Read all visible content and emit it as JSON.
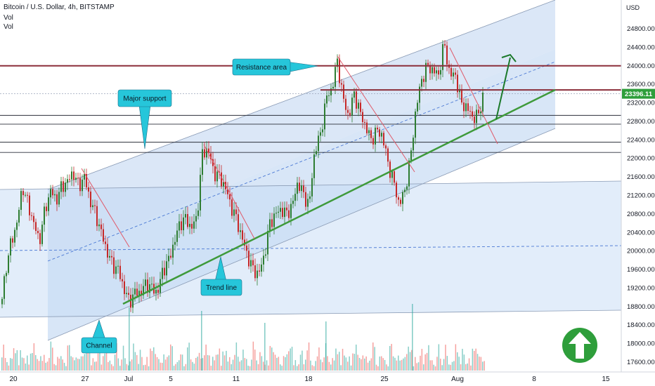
{
  "header": {
    "symbol_line": "Bitcoin / U.S. Dollar, 4h, BITSTAMP",
    "indicator_1": "Vol",
    "indicator_2": "Vol"
  },
  "axis": {
    "currency": "USD",
    "current_price": "23396.11"
  },
  "annotations": {
    "resistance": "Resistance area",
    "support": "Major support",
    "trend": "Trend line",
    "channel": "Channel"
  },
  "colors": {
    "up": "#26a69a",
    "down": "#ef5350",
    "candle_up": "#2e7d32",
    "candle_down": "#c62828",
    "channel_fill": "#bcd4f2",
    "trendline": "#3e9a3a",
    "resistance": "#8b2e3a",
    "callout": "#26c6da",
    "price_badge": "#2e9e3b",
    "arrow_circle": "#2e9e3b"
  },
  "icons": [
    "arrow-up-icon"
  ],
  "chart_data": {
    "type": "candlestick",
    "title": "Bitcoin / U.S. Dollar, 4h, BITSTAMP",
    "ylabel": "USD",
    "ylim": [
      17400,
      24950
    ],
    "y_ticks": [
      17600,
      18000,
      18400,
      18800,
      19200,
      19600,
      20000,
      20400,
      20800,
      21200,
      21600,
      22000,
      22400,
      22800,
      23200,
      23600,
      24000,
      24400,
      24800
    ],
    "x_tick_labels": [
      "20",
      "27",
      "Jul",
      "5",
      "11",
      "18",
      "25",
      "Aug",
      "8",
      "15"
    ],
    "last_price": 23396.11,
    "resistance_levels": [
      24000,
      23480
    ],
    "support_levels": [
      22930,
      22740,
      22350,
      22130
    ],
    "path": [
      [
        0,
        18600
      ],
      [
        8,
        19600
      ],
      [
        16,
        20200
      ],
      [
        24,
        20600
      ],
      [
        32,
        21400
      ],
      [
        40,
        21000
      ],
      [
        48,
        20600
      ],
      [
        56,
        20200
      ],
      [
        64,
        20900
      ],
      [
        72,
        21300
      ],
      [
        80,
        21100
      ],
      [
        88,
        21400
      ],
      [
        96,
        21500
      ],
      [
        104,
        21700
      ],
      [
        112,
        21400
      ],
      [
        120,
        21600
      ],
      [
        128,
        21100
      ],
      [
        136,
        20800
      ],
      [
        144,
        20400
      ],
      [
        152,
        20000
      ],
      [
        160,
        19700
      ],
      [
        168,
        19600
      ],
      [
        176,
        19200
      ],
      [
        184,
        18900
      ],
      [
        192,
        19100
      ],
      [
        200,
        19100
      ],
      [
        208,
        19300
      ],
      [
        216,
        19200
      ],
      [
        224,
        19100
      ],
      [
        232,
        19600
      ],
      [
        240,
        19800
      ],
      [
        248,
        20200
      ],
      [
        256,
        20600
      ],
      [
        264,
        20700
      ],
      [
        272,
        20500
      ],
      [
        280,
        20700
      ],
      [
        288,
        22100
      ],
      [
        296,
        22200
      ],
      [
        304,
        21700
      ],
      [
        312,
        21600
      ],
      [
        320,
        21400
      ],
      [
        328,
        21000
      ],
      [
        336,
        20700
      ],
      [
        344,
        20300
      ],
      [
        352,
        19900
      ],
      [
        360,
        19600
      ],
      [
        368,
        19500
      ],
      [
        376,
        19900
      ],
      [
        384,
        20600
      ],
      [
        392,
        20800
      ],
      [
        400,
        20900
      ],
      [
        408,
        20800
      ],
      [
        416,
        21000
      ],
      [
        424,
        21500
      ],
      [
        432,
        21200
      ],
      [
        440,
        21000
      ],
      [
        448,
        22200
      ],
      [
        456,
        22500
      ],
      [
        464,
        23300
      ],
      [
        472,
        23500
      ],
      [
        480,
        24100
      ],
      [
        488,
        23300
      ],
      [
        496,
        22900
      ],
      [
        504,
        23400
      ],
      [
        512,
        23000
      ],
      [
        520,
        22700
      ],
      [
        528,
        22400
      ],
      [
        536,
        22600
      ],
      [
        544,
        22500
      ],
      [
        552,
        21900
      ],
      [
        560,
        21500
      ],
      [
        568,
        21000
      ],
      [
        576,
        21300
      ],
      [
        584,
        22000
      ],
      [
        592,
        23100
      ],
      [
        600,
        23700
      ],
      [
        608,
        24000
      ],
      [
        616,
        23900
      ],
      [
        624,
        23800
      ],
      [
        632,
        24500
      ],
      [
        640,
        23800
      ],
      [
        648,
        23800
      ],
      [
        656,
        23200
      ],
      [
        664,
        23100
      ],
      [
        672,
        22900
      ],
      [
        680,
        22900
      ],
      [
        688,
        23396
      ]
    ]
  }
}
